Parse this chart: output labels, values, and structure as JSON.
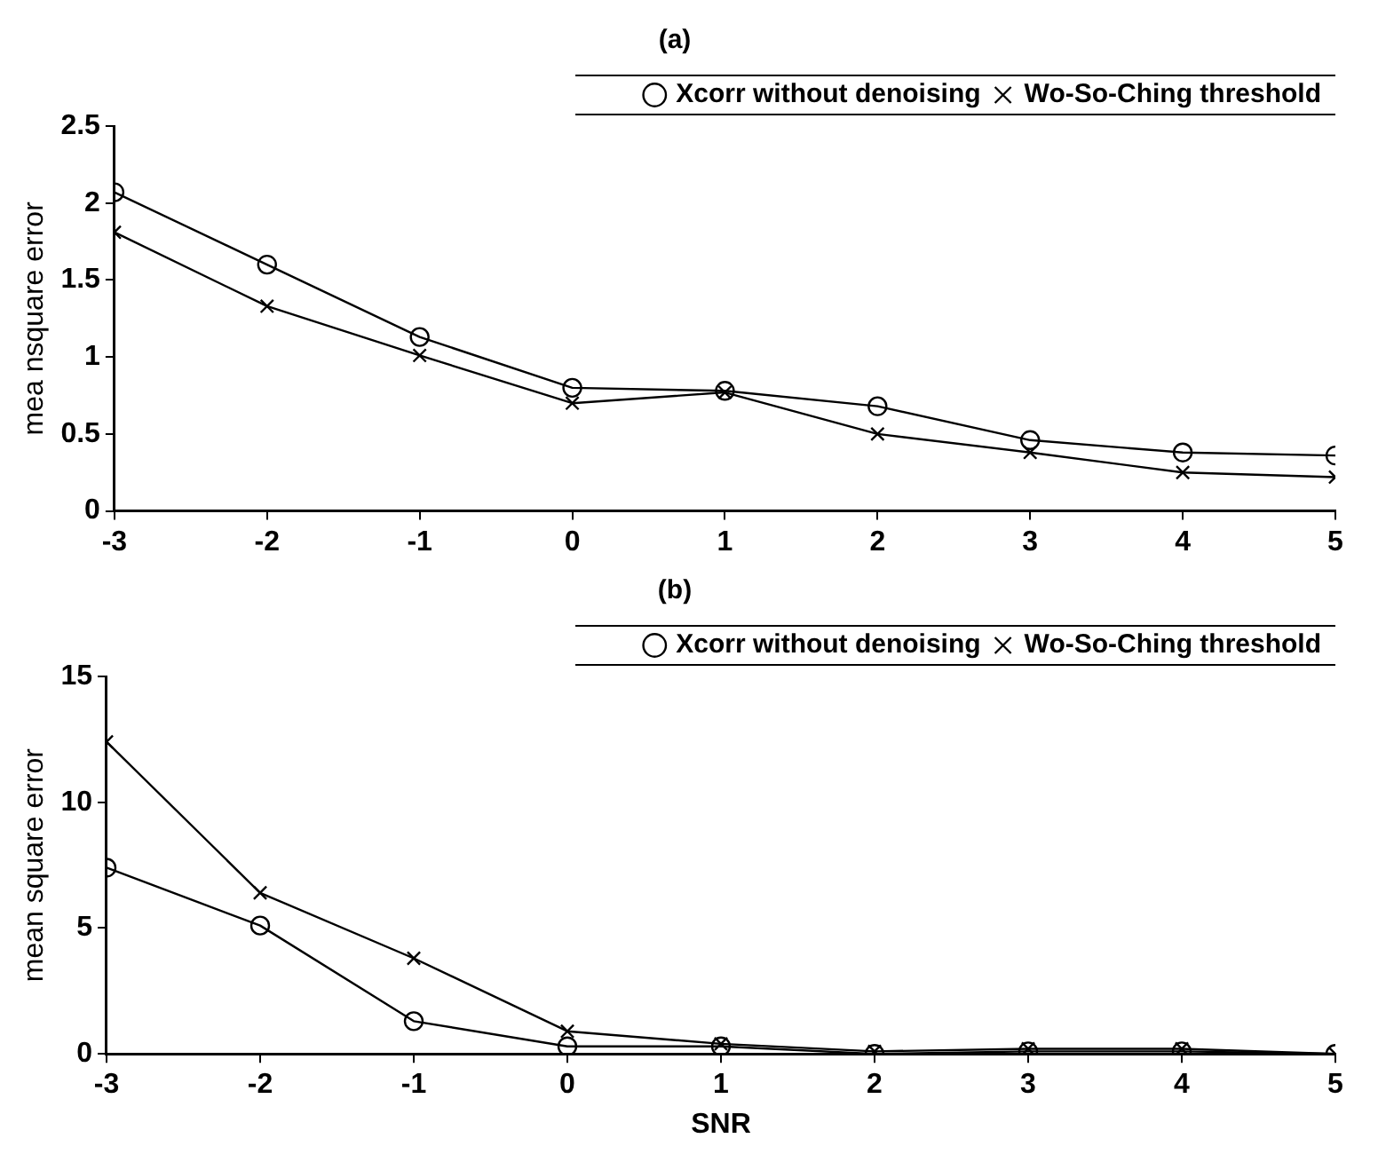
{
  "chart_data": [
    {
      "type": "line",
      "title": "(a)",
      "ylabel": "mea nsquare error",
      "x": [
        -3,
        -2,
        -1,
        0,
        1,
        2,
        3,
        4,
        5
      ],
      "xlim": [
        -3,
        5
      ],
      "xticks": [
        -3,
        -2,
        -1,
        0,
        1,
        2,
        3,
        4,
        5
      ],
      "ylim": [
        0,
        2.5
      ],
      "yticks": [
        0,
        0.5,
        1,
        1.5,
        2,
        2.5
      ],
      "legend": "top right",
      "grid": false,
      "line_style": "solid",
      "series": [
        {
          "name": "Xcorr without denoising",
          "color": "#000000",
          "marker": "circle",
          "values": [
            2.07,
            1.6,
            1.13,
            0.8,
            0.78,
            0.68,
            0.46,
            0.38,
            0.36
          ]
        },
        {
          "name": "Wo-So-Ching threshold",
          "color": "#000000",
          "marker": "cross",
          "values": [
            1.81,
            1.33,
            1.01,
            0.7,
            0.77,
            0.5,
            0.38,
            0.25,
            0.22
          ]
        }
      ]
    },
    {
      "type": "line",
      "title": "(b)",
      "xlabel": "SNR",
      "ylabel": "mean square error",
      "x": [
        -3,
        -2,
        -1,
        0,
        1,
        2,
        3,
        4,
        5
      ],
      "xlim": [
        -3,
        5
      ],
      "xticks": [
        -3,
        -2,
        -1,
        0,
        1,
        2,
        3,
        4,
        5
      ],
      "ylim": [
        0,
        15
      ],
      "yticks": [
        0,
        5,
        10,
        15
      ],
      "legend": "top right",
      "grid": false,
      "line_style": "solid",
      "series": [
        {
          "name": "Xcorr without denoising",
          "color": "#000000",
          "marker": "circle",
          "values": [
            7.4,
            5.1,
            1.3,
            0.3,
            0.3,
            0.0,
            0.1,
            0.1,
            0.0
          ]
        },
        {
          "name": "Wo-So-Ching threshold",
          "color": "#000000",
          "marker": "cross",
          "values": [
            12.4,
            6.4,
            3.8,
            0.9,
            0.4,
            0.1,
            0.2,
            0.2,
            0.0
          ]
        }
      ]
    }
  ]
}
